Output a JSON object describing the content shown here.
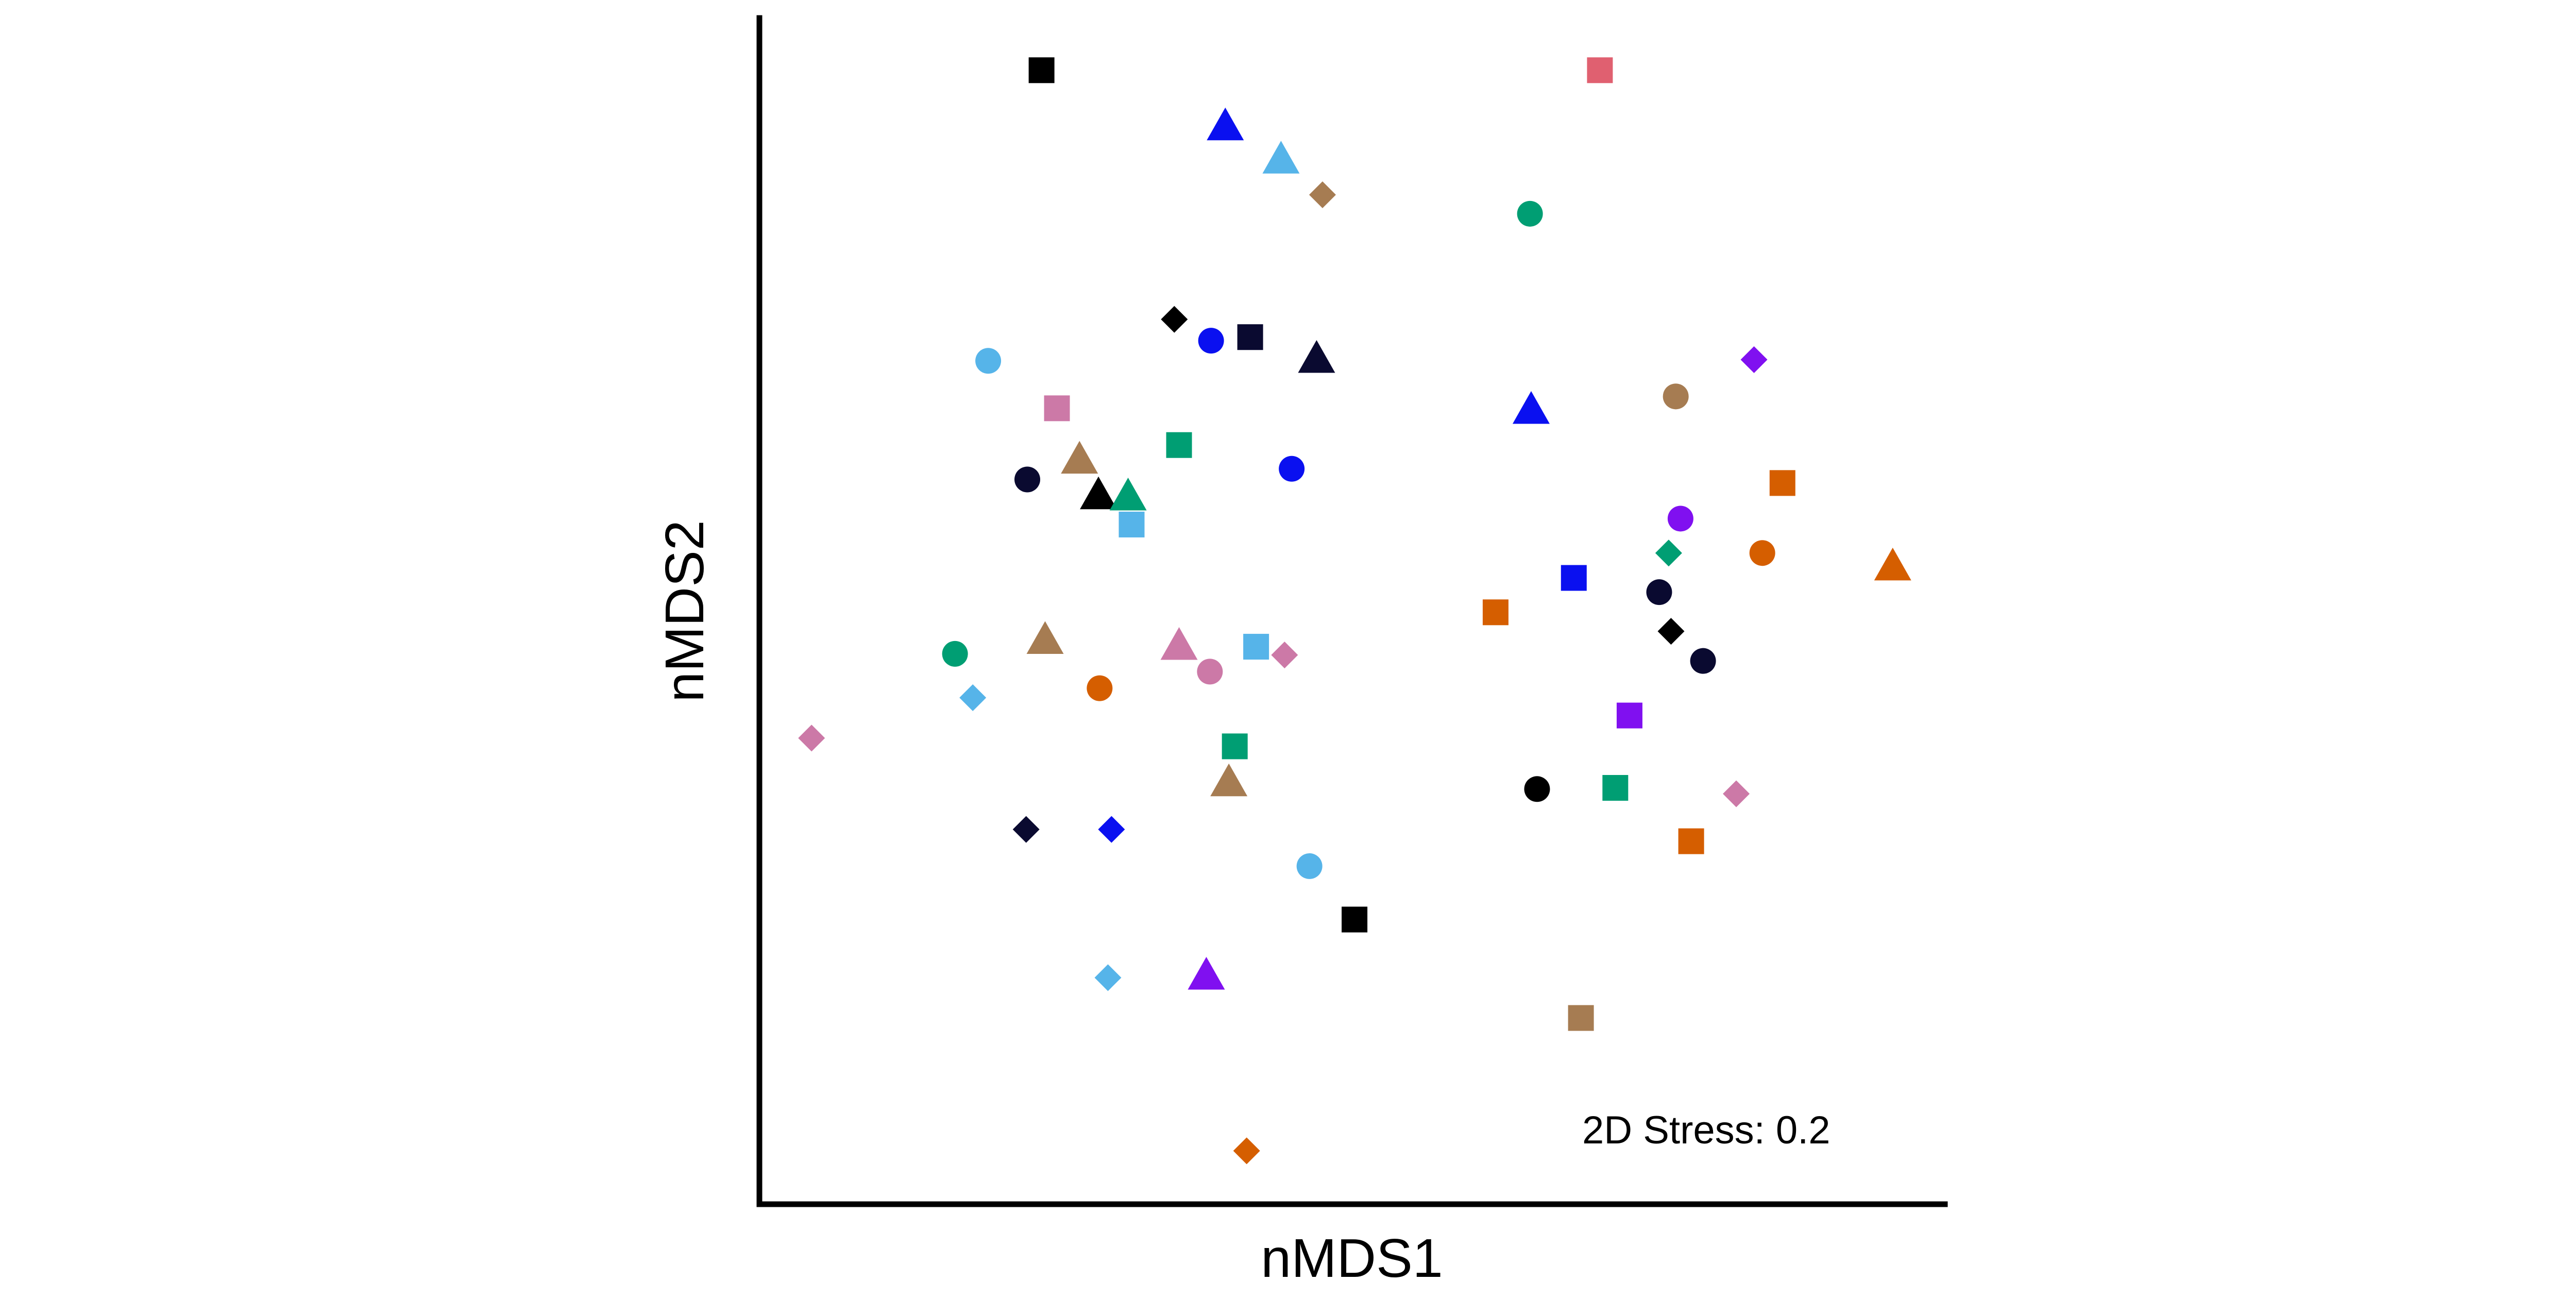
{
  "chart_data": {
    "type": "scatter",
    "title": "",
    "xlabel": "nMDS1",
    "ylabel": "nMDS2",
    "annotation": "2D Stress: 0.2",
    "xlim": [
      0,
      100
    ],
    "ylim": [
      0,
      100
    ],
    "grid": false,
    "legend": "none",
    "points": [
      {
        "x": 23.8,
        "y": 95.6,
        "shape": "square",
        "color": "#000000"
      },
      {
        "x": 70.9,
        "y": 95.6,
        "shape": "square",
        "color": "#E06070"
      },
      {
        "x": 39.3,
        "y": 90.8,
        "shape": "triangle",
        "color": "#0A10F0"
      },
      {
        "x": 44.0,
        "y": 88.0,
        "shape": "triangle",
        "color": "#56B4E9"
      },
      {
        "x": 47.5,
        "y": 85.1,
        "shape": "diamond",
        "color": "#A67C52"
      },
      {
        "x": 65.0,
        "y": 83.5,
        "shape": "circle",
        "color": "#009E73"
      },
      {
        "x": 35.0,
        "y": 74.6,
        "shape": "diamond",
        "color": "#000000"
      },
      {
        "x": 41.4,
        "y": 73.1,
        "shape": "square",
        "color": "#0A0A30"
      },
      {
        "x": 38.1,
        "y": 72.8,
        "shape": "circle",
        "color": "#0A10F0"
      },
      {
        "x": 19.3,
        "y": 71.1,
        "shape": "circle",
        "color": "#56B4E9"
      },
      {
        "x": 47.0,
        "y": 71.2,
        "shape": "triangle",
        "color": "#0A0A30"
      },
      {
        "x": 83.9,
        "y": 71.2,
        "shape": "diamond",
        "color": "#8010F0"
      },
      {
        "x": 77.3,
        "y": 68.1,
        "shape": "circle",
        "color": "#A67C52"
      },
      {
        "x": 25.1,
        "y": 67.1,
        "shape": "square",
        "color": "#CC79A7"
      },
      {
        "x": 65.1,
        "y": 66.9,
        "shape": "triangle",
        "color": "#0A10F0"
      },
      {
        "x": 35.4,
        "y": 64.0,
        "shape": "square",
        "color": "#009E73"
      },
      {
        "x": 27.0,
        "y": 62.7,
        "shape": "triangle",
        "color": "#A67C52"
      },
      {
        "x": 44.9,
        "y": 62.0,
        "shape": "circle",
        "color": "#0A10F0"
      },
      {
        "x": 22.6,
        "y": 61.1,
        "shape": "circle",
        "color": "#0A0A30"
      },
      {
        "x": 28.6,
        "y": 59.7,
        "shape": "triangle",
        "color": "#000000"
      },
      {
        "x": 31.1,
        "y": 59.6,
        "shape": "triangle",
        "color": "#009E73"
      },
      {
        "x": 86.3,
        "y": 60.8,
        "shape": "square",
        "color": "#D55E00"
      },
      {
        "x": 31.4,
        "y": 57.3,
        "shape": "square",
        "color": "#56B4E9"
      },
      {
        "x": 77.7,
        "y": 57.8,
        "shape": "circle",
        "color": "#8010F0"
      },
      {
        "x": 76.7,
        "y": 54.9,
        "shape": "diamond",
        "color": "#009E73"
      },
      {
        "x": 84.6,
        "y": 54.9,
        "shape": "circle",
        "color": "#D55E00"
      },
      {
        "x": 95.6,
        "y": 53.7,
        "shape": "triangle",
        "color": "#D55E00"
      },
      {
        "x": 68.7,
        "y": 52.8,
        "shape": "square",
        "color": "#0A10F0"
      },
      {
        "x": 75.9,
        "y": 51.6,
        "shape": "circle",
        "color": "#0A0A30"
      },
      {
        "x": 62.1,
        "y": 49.9,
        "shape": "square",
        "color": "#D55E00"
      },
      {
        "x": 76.9,
        "y": 48.3,
        "shape": "diamond",
        "color": "#000000"
      },
      {
        "x": 24.1,
        "y": 47.5,
        "shape": "triangle",
        "color": "#A67C52"
      },
      {
        "x": 35.4,
        "y": 47.0,
        "shape": "triangle",
        "color": "#CC79A7"
      },
      {
        "x": 41.9,
        "y": 47.0,
        "shape": "square",
        "color": "#56B4E9"
      },
      {
        "x": 16.5,
        "y": 46.4,
        "shape": "circle",
        "color": "#009E73"
      },
      {
        "x": 44.3,
        "y": 46.3,
        "shape": "diamond",
        "color": "#CC79A7"
      },
      {
        "x": 79.6,
        "y": 45.8,
        "shape": "circle",
        "color": "#0A0A30"
      },
      {
        "x": 38.0,
        "y": 44.9,
        "shape": "circle",
        "color": "#CC79A7"
      },
      {
        "x": 28.7,
        "y": 43.5,
        "shape": "circle",
        "color": "#D55E00"
      },
      {
        "x": 18.0,
        "y": 42.7,
        "shape": "diamond",
        "color": "#56B4E9"
      },
      {
        "x": 73.4,
        "y": 41.2,
        "shape": "square",
        "color": "#8010F0"
      },
      {
        "x": 4.4,
        "y": 39.3,
        "shape": "diamond",
        "color": "#CC79A7"
      },
      {
        "x": 40.1,
        "y": 38.6,
        "shape": "square",
        "color": "#009E73"
      },
      {
        "x": 39.6,
        "y": 35.5,
        "shape": "triangle",
        "color": "#A67C52"
      },
      {
        "x": 65.6,
        "y": 35.0,
        "shape": "circle",
        "color": "#000000"
      },
      {
        "x": 72.2,
        "y": 35.1,
        "shape": "square",
        "color": "#009E73"
      },
      {
        "x": 82.4,
        "y": 34.6,
        "shape": "diamond",
        "color": "#CC79A7"
      },
      {
        "x": 78.6,
        "y": 30.6,
        "shape": "square",
        "color": "#D55E00"
      },
      {
        "x": 22.5,
        "y": 31.6,
        "shape": "diamond",
        "color": "#0A0A30"
      },
      {
        "x": 29.7,
        "y": 31.6,
        "shape": "diamond",
        "color": "#0A10F0"
      },
      {
        "x": 46.4,
        "y": 28.5,
        "shape": "circle",
        "color": "#56B4E9"
      },
      {
        "x": 50.2,
        "y": 24.0,
        "shape": "square",
        "color": "#000000"
      },
      {
        "x": 29.4,
        "y": 19.1,
        "shape": "diamond",
        "color": "#56B4E9"
      },
      {
        "x": 37.7,
        "y": 19.2,
        "shape": "triangle",
        "color": "#8010F0"
      },
      {
        "x": 69.3,
        "y": 15.7,
        "shape": "square",
        "color": "#A67C52"
      },
      {
        "x": 41.1,
        "y": 4.5,
        "shape": "diamond",
        "color": "#D55E00"
      }
    ]
  }
}
